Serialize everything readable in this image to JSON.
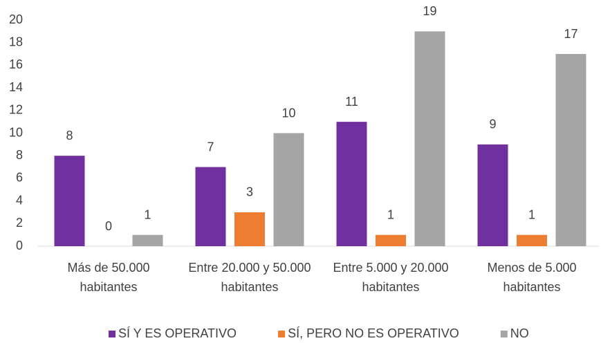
{
  "chart_data": {
    "type": "bar",
    "categories": [
      "Más de 50.000 habitantes",
      "Entre 20.000 y 50.000 habitantes",
      "Entre 5.000 y 20.000 habitantes",
      "Menos de 5.000 habitantes"
    ],
    "series": [
      {
        "name": "SÍ Y ES OPERATIVO",
        "color": "#7030a0",
        "values": [
          8,
          7,
          11,
          9
        ]
      },
      {
        "name": "SÍ, PERO NO ES OPERATIVO",
        "color": "#ed7d31",
        "values": [
          0,
          3,
          1,
          1
        ]
      },
      {
        "name": "NO",
        "color": "#a5a5a5",
        "values": [
          1,
          10,
          19,
          17
        ]
      }
    ],
    "ylim": [
      0,
      20
    ],
    "yticks": [
      0,
      2,
      4,
      6,
      8,
      10,
      12,
      14,
      16,
      18,
      20
    ],
    "grid": false,
    "legend": "bottom"
  }
}
